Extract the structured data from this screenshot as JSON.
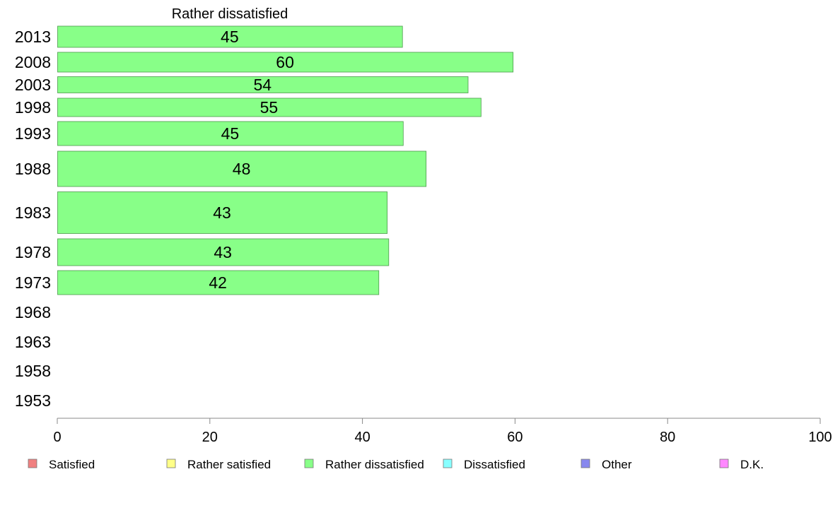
{
  "chart_data": {
    "type": "bar",
    "orientation": "horizontal",
    "title": "Rather dissatisfied",
    "categories": [
      "2013",
      "2008",
      "2003",
      "1998",
      "1993",
      "1988",
      "1983",
      "1978",
      "1973",
      "1968",
      "1963",
      "1958",
      "1953"
    ],
    "series": [
      {
        "name": "Rather dissatisfied",
        "color": "#88ff88",
        "values": [
          45,
          60,
          54,
          55,
          45,
          48,
          43,
          43,
          42,
          null,
          null,
          null,
          null
        ],
        "display_values": [
          45.2,
          59.7,
          53.8,
          55.5,
          45.3,
          48.3,
          43.2,
          43.4,
          42.1,
          null,
          null,
          null,
          null
        ]
      }
    ],
    "xlim": [
      0,
      100
    ],
    "xticks": [
      "0",
      "20",
      "40",
      "60",
      "80",
      "100"
    ],
    "grid": false,
    "legend": {
      "placement": "bottom",
      "items": [
        {
          "label": "Satisfied",
          "color": "#f08080"
        },
        {
          "label": "Rather satisfied",
          "color": "#ffff88"
        },
        {
          "label": "Rather dissatisfied",
          "color": "#88ff88"
        },
        {
          "label": "Dissatisfied",
          "color": "#88ffff"
        },
        {
          "label": "Other",
          "color": "#8888ee"
        },
        {
          "label": "D.K.",
          "color": "#ff88ff"
        }
      ]
    }
  }
}
